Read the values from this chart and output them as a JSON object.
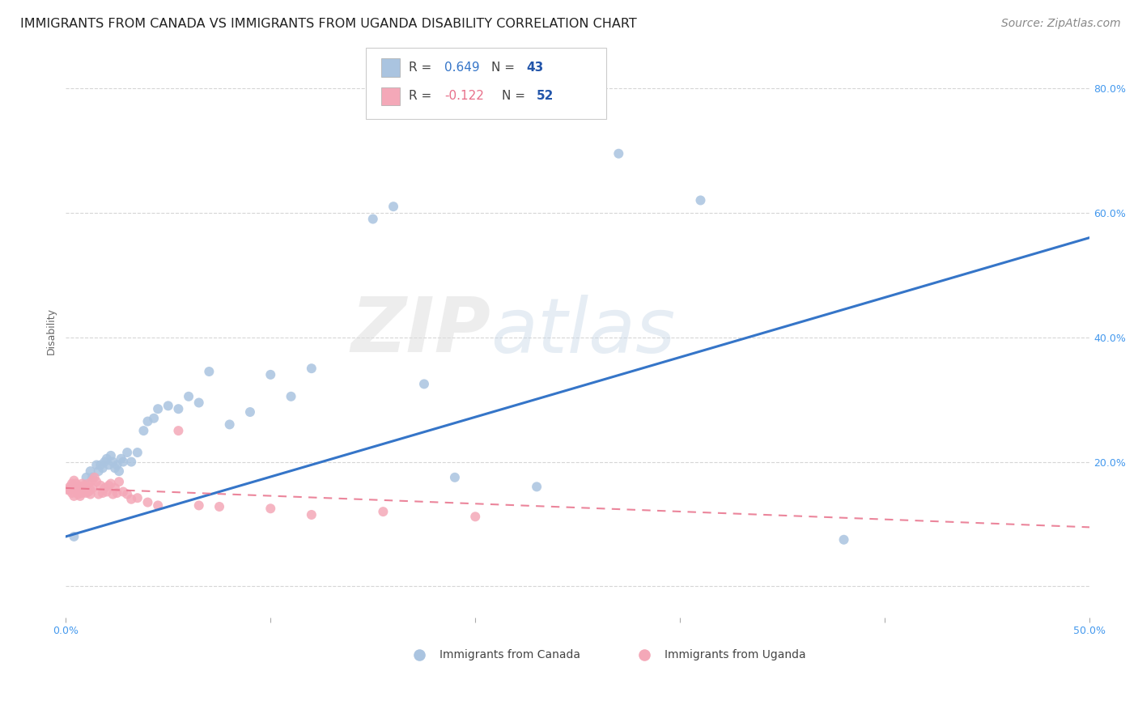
{
  "title": "IMMIGRANTS FROM CANADA VS IMMIGRANTS FROM UGANDA DISABILITY CORRELATION CHART",
  "source": "Source: ZipAtlas.com",
  "ylabel": "Disability",
  "xlim": [
    0.0,
    0.5
  ],
  "ylim": [
    -0.05,
    0.87
  ],
  "xticks": [
    0.0,
    0.1,
    0.2,
    0.3,
    0.4,
    0.5
  ],
  "xticklabels": [
    "0.0%",
    "",
    "",
    "",
    "",
    "50.0%"
  ],
  "yticks": [
    0.0,
    0.2,
    0.4,
    0.6,
    0.8
  ],
  "yticklabels": [
    "",
    "20.0%",
    "40.0%",
    "60.0%",
    "80.0%"
  ],
  "grid_color": "#cccccc",
  "background_color": "#ffffff",
  "watermark_zip": "ZIP",
  "watermark_atlas": "atlas",
  "legend_r_canada": "R = ",
  "legend_val_canada": "0.649",
  "legend_n_canada": "N = ",
  "legend_nval_canada": "43",
  "legend_r_uganda": "R = ",
  "legend_val_uganda": "-0.122",
  "legend_n_uganda": "N = ",
  "legend_nval_uganda": "52",
  "canada_color": "#aac4e0",
  "uganda_color": "#f4a8b8",
  "canada_line_color": "#3575c8",
  "uganda_line_color": "#e8708a",
  "title_fontsize": 11.5,
  "axis_label_fontsize": 9,
  "tick_fontsize": 9,
  "source_fontsize": 10,
  "canada_x": [
    0.004,
    0.01,
    0.012,
    0.013,
    0.015,
    0.016,
    0.017,
    0.018,
    0.019,
    0.02,
    0.021,
    0.022,
    0.023,
    0.024,
    0.025,
    0.026,
    0.027,
    0.028,
    0.03,
    0.032,
    0.035,
    0.038,
    0.04,
    0.043,
    0.045,
    0.05,
    0.055,
    0.06,
    0.065,
    0.07,
    0.08,
    0.09,
    0.1,
    0.11,
    0.12,
    0.15,
    0.16,
    0.175,
    0.19,
    0.23,
    0.27,
    0.31,
    0.38
  ],
  "canada_y": [
    0.08,
    0.175,
    0.185,
    0.175,
    0.195,
    0.185,
    0.195,
    0.19,
    0.2,
    0.205,
    0.195,
    0.21,
    0.2,
    0.19,
    0.195,
    0.185,
    0.205,
    0.2,
    0.215,
    0.2,
    0.215,
    0.25,
    0.265,
    0.27,
    0.285,
    0.29,
    0.285,
    0.305,
    0.295,
    0.345,
    0.26,
    0.28,
    0.34,
    0.305,
    0.35,
    0.59,
    0.61,
    0.325,
    0.175,
    0.16,
    0.695,
    0.62,
    0.075
  ],
  "uganda_x": [
    0.001,
    0.002,
    0.002,
    0.003,
    0.003,
    0.004,
    0.004,
    0.005,
    0.005,
    0.006,
    0.006,
    0.007,
    0.007,
    0.007,
    0.008,
    0.008,
    0.009,
    0.009,
    0.01,
    0.01,
    0.011,
    0.011,
    0.012,
    0.012,
    0.013,
    0.013,
    0.014,
    0.015,
    0.016,
    0.017,
    0.018,
    0.019,
    0.02,
    0.021,
    0.022,
    0.023,
    0.024,
    0.025,
    0.026,
    0.028,
    0.03,
    0.032,
    0.035,
    0.04,
    0.045,
    0.055,
    0.065,
    0.075,
    0.1,
    0.12,
    0.155,
    0.2
  ],
  "uganda_y": [
    0.155,
    0.16,
    0.155,
    0.15,
    0.165,
    0.145,
    0.17,
    0.158,
    0.165,
    0.148,
    0.158,
    0.152,
    0.16,
    0.145,
    0.15,
    0.165,
    0.158,
    0.162,
    0.15,
    0.16,
    0.152,
    0.165,
    0.155,
    0.148,
    0.17,
    0.158,
    0.175,
    0.168,
    0.148,
    0.162,
    0.15,
    0.158,
    0.152,
    0.162,
    0.165,
    0.148,
    0.158,
    0.15,
    0.168,
    0.152,
    0.148,
    0.14,
    0.142,
    0.135,
    0.13,
    0.25,
    0.13,
    0.128,
    0.125,
    0.115,
    0.12,
    0.112
  ],
  "canada_line_x": [
    0.0,
    0.5
  ],
  "canada_line_y": [
    0.08,
    0.56
  ],
  "uganda_line_x": [
    0.0,
    0.5
  ],
  "uganda_line_y": [
    0.158,
    0.095
  ]
}
